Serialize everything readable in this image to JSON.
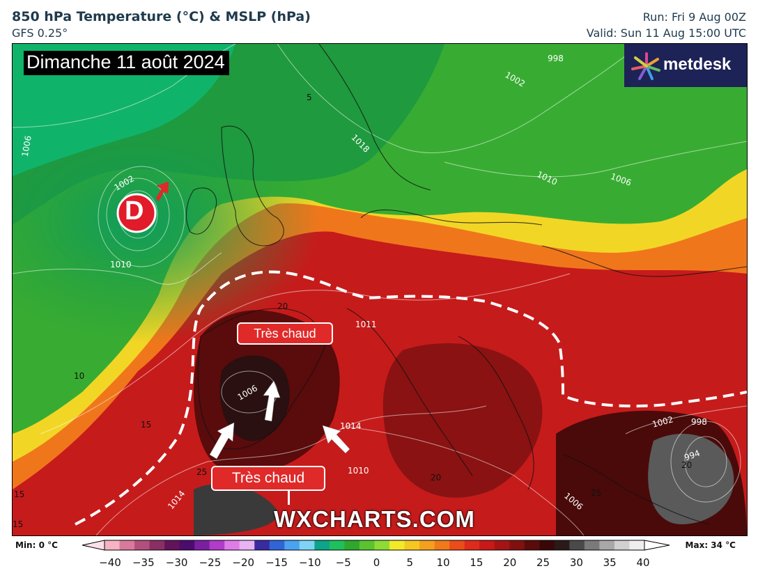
{
  "header": {
    "title": "850 hPa Temperature (°C) & MSLP (hPa)",
    "model": "GFS 0.25°",
    "run": "Run: Fri 9 Aug 00Z",
    "valid": "Valid: Sun 11 Aug 15:00 UTC"
  },
  "map": {
    "date_label": "Dimanche 11 août 2024",
    "logo_text": "metdesk",
    "low_symbol": "D",
    "annotation_1": "Très chaud",
    "annotation_2": "Très chaud",
    "watermark": "WXCHARTS.COM",
    "isobar_labels": [
      "998",
      "1002",
      "1018",
      "1010",
      "1006",
      "1002",
      "1006",
      "1010",
      "1006",
      "1014",
      "1010",
      "1014",
      "1002",
      "998",
      "994",
      "1006",
      "1011"
    ],
    "temp_labels": [
      "5",
      "10",
      "15",
      "15",
      "15",
      "20",
      "25",
      "20",
      "25",
      "20"
    ]
  },
  "colorbar": {
    "min_label": "Min: 0 °C",
    "max_label": "Max: 34 °C",
    "ticks": [
      "−40",
      "−35",
      "−30",
      "−25",
      "−20",
      "−15",
      "−10",
      "−5",
      "0",
      "5",
      "10",
      "15",
      "20",
      "25",
      "30",
      "35",
      "40"
    ],
    "colors": [
      "#f5b3c4",
      "#d97a9c",
      "#b34f7d",
      "#8a2f66",
      "#62135a",
      "#4b0c6e",
      "#7b1fa2",
      "#b13cc9",
      "#e07ce8",
      "#e8b3f5",
      "#3a2aa0",
      "#3065d8",
      "#4aa3f0",
      "#7fd4f5",
      "#0ca58a",
      "#1fbf5e",
      "#2ea82d",
      "#5ac42f",
      "#8edb35",
      "#f2ea28",
      "#f6c722",
      "#f5a01d",
      "#f07a1a",
      "#ea4d19",
      "#e02a1c",
      "#c81818",
      "#a51414",
      "#821010",
      "#5a0b0b",
      "#3a0707",
      "#2a1a1a",
      "#4a4a4a",
      "#7a7a7a",
      "#a8a8a8",
      "#d0d0d0",
      "#eeeeee"
    ]
  }
}
